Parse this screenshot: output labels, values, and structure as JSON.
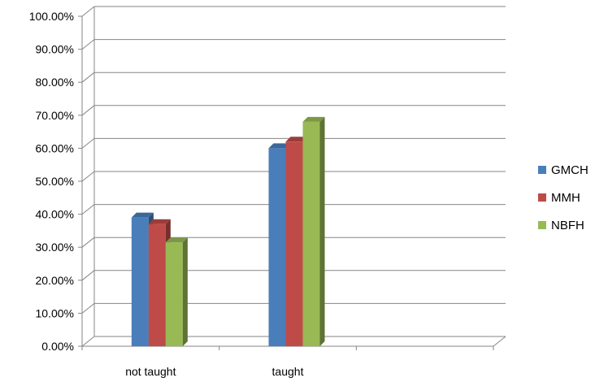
{
  "chart_data": {
    "type": "bar",
    "categories": [
      "not taught",
      "taught",
      ""
    ],
    "series": [
      {
        "name": "GMCH",
        "values": [
          0.39,
          0.6,
          null
        ],
        "color": "#4a7ebb"
      },
      {
        "name": "MMH",
        "values": [
          0.37,
          0.62,
          null
        ],
        "color": "#be4b48"
      },
      {
        "name": "NBFH",
        "values": [
          0.315,
          0.68,
          null
        ],
        "color": "#98b954"
      }
    ],
    "ylim": [
      0,
      1
    ],
    "yticks": [
      "0.00%",
      "10.00%",
      "20.00%",
      "30.00%",
      "40.00%",
      "50.00%",
      "60.00%",
      "70.00%",
      "80.00%",
      "90.00%",
      "100.00%"
    ],
    "title": "",
    "xlabel": "",
    "ylabel": "",
    "grid": true,
    "legend": "right",
    "style": "3d-clustered-column"
  }
}
